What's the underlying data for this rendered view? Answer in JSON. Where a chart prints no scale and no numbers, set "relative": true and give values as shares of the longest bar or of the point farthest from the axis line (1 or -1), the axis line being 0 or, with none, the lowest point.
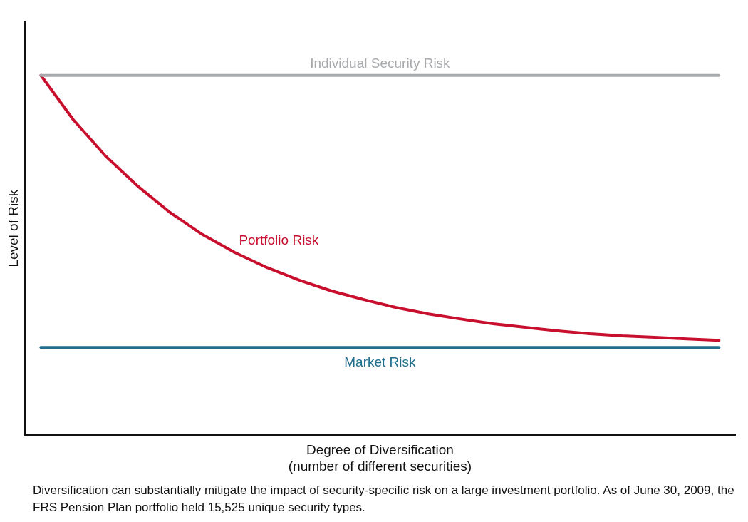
{
  "chart_data": {
    "type": "line",
    "relative": true,
    "xlabel": "Degree of Diversification\n(number of different securities)",
    "ylabel": "Level of Risk",
    "legend": false,
    "grid": false,
    "marker": "none",
    "line_style": "solid",
    "categories": [
      null,
      null,
      null,
      null,
      null,
      null,
      null,
      null,
      null,
      null,
      null,
      null,
      null,
      null,
      null,
      null,
      null,
      null,
      null,
      null,
      null,
      null
    ],
    "series": [
      {
        "name": "Individual Security Risk",
        "color": "#a7a9ac",
        "values": [
          1,
          1,
          1,
          1,
          1,
          1,
          1,
          1,
          1,
          1,
          1,
          1,
          1,
          1,
          1,
          1,
          1,
          1,
          1,
          1,
          1,
          1
        ]
      },
      {
        "name": "Portfolio Risk",
        "color": "#c8102e",
        "values": [
          1,
          0.877,
          0.776,
          0.692,
          0.619,
          0.558,
          0.508,
          0.466,
          0.431,
          0.401,
          0.377,
          0.355,
          0.337,
          0.323,
          0.31,
          0.3,
          0.29,
          0.282,
          0.276,
          0.272,
          0.268,
          0.264
        ]
      },
      {
        "name": "Market Risk",
        "color": "#1f6e8c",
        "values": [
          0.244,
          0.244,
          0.244,
          0.244,
          0.244,
          0.244,
          0.244,
          0.244,
          0.244,
          0.244,
          0.244,
          0.244,
          0.244,
          0.244,
          0.244,
          0.244,
          0.244,
          0.244,
          0.244,
          0.244,
          0.244,
          0.244
        ]
      }
    ],
    "annotations": [
      "Diversification can substantially mitigate the impact of security-specific risk on a large investment portfolio. As of June 30, 2009, the FRS Pension Plan portfolio held 15,525 unique security types."
    ]
  }
}
